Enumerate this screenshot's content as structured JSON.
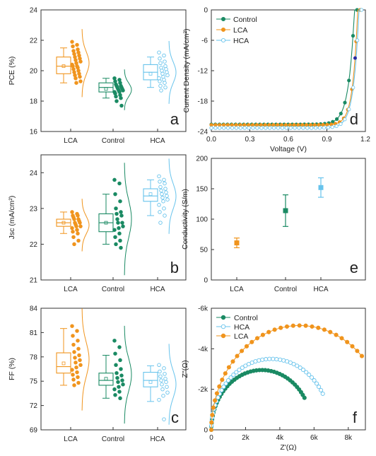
{
  "colors": {
    "LCA": "#f0941d",
    "Control": "#1a8a63",
    "HCA": "#67c3ec",
    "axis": "#333333",
    "endpoint": "#2a2aa0"
  },
  "chart_data": [
    {
      "id": "a",
      "type": "box",
      "panel_label": "a",
      "ylabel": "PCE (%)",
      "ylim": [
        16,
        24
      ],
      "yticks": [
        16,
        18,
        20,
        22,
        24
      ],
      "categories": [
        "LCA",
        "Control",
        "HCA"
      ],
      "boxes": [
        {
          "name": "LCA",
          "whisker_low": 19.2,
          "q1": 19.8,
          "median": 20.3,
          "mean": 20.3,
          "q3": 20.9,
          "whisker_high": 21.5,
          "points": [
            21.9,
            21.7,
            21.6,
            21.4,
            21.3,
            21.2,
            21.1,
            21.0,
            20.9,
            20.8,
            20.7,
            20.6,
            20.5,
            20.4,
            20.3,
            20.3,
            20.2,
            20.1,
            20.0,
            19.9,
            19.8,
            19.7,
            19.6,
            19.5,
            19.3,
            19.2
          ]
        },
        {
          "name": "Control",
          "whisker_low": 18.2,
          "q1": 18.6,
          "median": 18.9,
          "mean": 18.8,
          "q3": 19.2,
          "whisker_high": 19.5,
          "points": [
            19.5,
            19.4,
            19.3,
            19.2,
            19.1,
            19.0,
            19.0,
            18.9,
            18.9,
            18.8,
            18.8,
            18.7,
            18.7,
            18.6,
            18.6,
            18.5,
            18.4,
            18.3,
            18.2,
            18.0,
            17.7
          ]
        },
        {
          "name": "HCA",
          "whisker_low": 18.9,
          "q1": 19.4,
          "median": 19.9,
          "mean": 19.8,
          "q3": 20.4,
          "whisker_high": 20.9,
          "points": [
            21.2,
            21.0,
            20.8,
            20.6,
            20.5,
            20.3,
            20.2,
            20.1,
            20.0,
            19.9,
            19.8,
            19.7,
            19.6,
            19.5,
            19.4,
            19.3,
            19.2,
            19.0,
            18.9,
            18.7
          ]
        }
      ]
    },
    {
      "id": "b",
      "type": "box",
      "panel_label": "b",
      "ylabel": "Jsc (mA/cm²)",
      "ylim": [
        21,
        24.5
      ],
      "yticks": [
        21,
        22,
        23,
        24
      ],
      "categories": [
        "LCA",
        "Control",
        "HCA"
      ],
      "boxes": [
        {
          "name": "LCA",
          "whisker_low": 22.3,
          "q1": 22.5,
          "median": 22.6,
          "mean": 22.6,
          "q3": 22.7,
          "whisker_high": 22.9,
          "points": [
            22.9,
            22.85,
            22.8,
            22.8,
            22.75,
            22.7,
            22.7,
            22.65,
            22.6,
            22.6,
            22.55,
            22.5,
            22.5,
            22.45,
            22.4,
            22.35,
            22.3,
            22.2,
            22.1,
            22.0
          ]
        },
        {
          "name": "Control",
          "whisker_low": 22.0,
          "q1": 22.35,
          "median": 22.6,
          "mean": 22.6,
          "q3": 22.85,
          "whisker_high": 23.4,
          "points": [
            23.8,
            23.7,
            23.4,
            23.2,
            23.0,
            22.9,
            22.85,
            22.8,
            22.7,
            22.6,
            22.6,
            22.5,
            22.45,
            22.4,
            22.3,
            22.2,
            22.1,
            22.0,
            21.9
          ]
        },
        {
          "name": "HCA",
          "whisker_low": 22.8,
          "q1": 23.2,
          "median": 23.35,
          "mean": 23.4,
          "q3": 23.55,
          "whisker_high": 23.8,
          "points": [
            23.9,
            23.8,
            23.75,
            23.7,
            23.6,
            23.55,
            23.5,
            23.45,
            23.4,
            23.35,
            23.3,
            23.25,
            23.2,
            23.1,
            23.0,
            22.9,
            22.8,
            22.6
          ]
        }
      ]
    },
    {
      "id": "c",
      "type": "box",
      "panel_label": "c",
      "ylabel": "FF (%)",
      "ylim": [
        69,
        84
      ],
      "yticks": [
        69,
        72,
        75,
        78,
        81,
        84
      ],
      "categories": [
        "LCA",
        "Control",
        "HCA"
      ],
      "boxes": [
        {
          "name": "LCA",
          "whisker_low": 74.5,
          "q1": 76.0,
          "median": 76.8,
          "mean": 77.2,
          "q3": 78.5,
          "whisker_high": 81.5,
          "points": [
            81.8,
            81.2,
            80.6,
            80.0,
            79.5,
            79.0,
            78.6,
            78.2,
            77.9,
            77.6,
            77.3,
            77.0,
            76.7,
            76.4,
            76.1,
            75.8,
            75.5,
            75.2,
            74.8,
            74.5
          ]
        },
        {
          "name": "Control",
          "whisker_low": 72.9,
          "q1": 74.5,
          "median": 75.1,
          "mean": 75.3,
          "q3": 76.0,
          "whisker_high": 78.2,
          "points": [
            80.0,
            79.2,
            78.4,
            77.6,
            77.0,
            76.5,
            76.0,
            75.7,
            75.4,
            75.1,
            74.9,
            74.6,
            74.3,
            74.0,
            73.7,
            73.3,
            72.9
          ]
        },
        {
          "name": "HCA",
          "whisker_low": 72.5,
          "q1": 74.3,
          "median": 75.1,
          "mean": 74.9,
          "q3": 76.1,
          "whisker_high": 76.9,
          "points": [
            77.0,
            76.6,
            76.2,
            75.9,
            75.6,
            75.3,
            75.1,
            74.9,
            74.6,
            74.3,
            74.0,
            73.6,
            73.2,
            72.7,
            70.3
          ]
        }
      ]
    },
    {
      "id": "d",
      "type": "line",
      "panel_label": "d",
      "xlabel": "Voltage (V)",
      "ylabel": "Current Density (mA/cm²)",
      "xlim": [
        0,
        1.2
      ],
      "ylim": [
        -24,
        0
      ],
      "xticks": [
        "0.0",
        "0.3",
        "0.6",
        "0.9",
        "1.2"
      ],
      "yticks": [
        "0",
        "-6",
        "-12",
        "-18",
        "-24"
      ],
      "legend_position": "top-left",
      "series": [
        {
          "name": "Control",
          "jsc": 22.6,
          "voc": 1.115,
          "n": 0.045
        },
        {
          "name": "LCA",
          "jsc": 22.7,
          "voc": 1.14,
          "n": 0.038
        },
        {
          "name": "HCA",
          "jsc": 23.3,
          "voc": 1.15,
          "n": 0.042
        }
      ]
    },
    {
      "id": "e",
      "type": "errorbar",
      "panel_label": "e",
      "ylabel": "Conductivity (S/m)",
      "ylim": [
        0,
        200
      ],
      "yticks": [
        0,
        50,
        100,
        150,
        200
      ],
      "categories": [
        "LCA",
        "Control",
        "HCA"
      ],
      "values": [
        61,
        114,
        152
      ],
      "errors": [
        8,
        26,
        16
      ]
    },
    {
      "id": "f",
      "type": "scatter",
      "panel_label": "f",
      "xlabel": "Z'(Ω)",
      "ylabel": "Z''(Ω)",
      "xlim": [
        0,
        9000
      ],
      "ylim": [
        0,
        -6000
      ],
      "xticks": [
        "0",
        "2k",
        "4k",
        "6k",
        "8k"
      ],
      "yticks": [
        "0",
        "-2k",
        "-4k",
        "-6k"
      ],
      "legend_position": "top-left",
      "series": [
        {
          "name": "Control",
          "rs": 0,
          "r": 5900
        },
        {
          "name": "HCA",
          "rs": 0,
          "r": 7000
        },
        {
          "name": "LCA",
          "rs": 0,
          "r": 10300
        }
      ]
    }
  ]
}
